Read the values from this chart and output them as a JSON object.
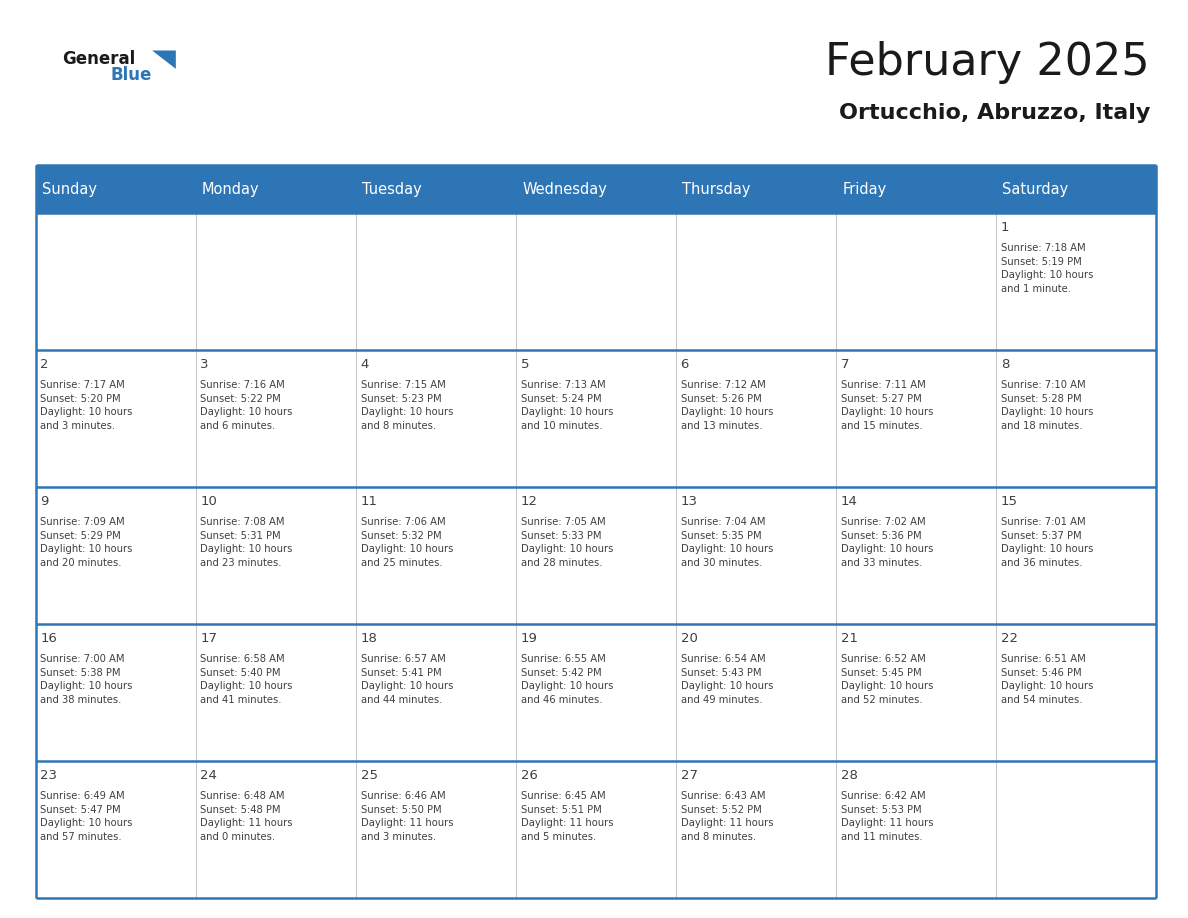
{
  "title": "February 2025",
  "subtitle": "Ortucchio, Abruzzo, Italy",
  "header_color": "#2E75B6",
  "header_text_color": "#FFFFFF",
  "cell_bg_color": "#FFFFFF",
  "border_color": "#2E75B6",
  "cell_border_color": "#AAAAAA",
  "text_color": "#404040",
  "day_headers": [
    "Sunday",
    "Monday",
    "Tuesday",
    "Wednesday",
    "Thursday",
    "Friday",
    "Saturday"
  ],
  "weeks": [
    [
      {
        "day": "",
        "info": ""
      },
      {
        "day": "",
        "info": ""
      },
      {
        "day": "",
        "info": ""
      },
      {
        "day": "",
        "info": ""
      },
      {
        "day": "",
        "info": ""
      },
      {
        "day": "",
        "info": ""
      },
      {
        "day": "1",
        "info": "Sunrise: 7:18 AM\nSunset: 5:19 PM\nDaylight: 10 hours\nand 1 minute."
      }
    ],
    [
      {
        "day": "2",
        "info": "Sunrise: 7:17 AM\nSunset: 5:20 PM\nDaylight: 10 hours\nand 3 minutes."
      },
      {
        "day": "3",
        "info": "Sunrise: 7:16 AM\nSunset: 5:22 PM\nDaylight: 10 hours\nand 6 minutes."
      },
      {
        "day": "4",
        "info": "Sunrise: 7:15 AM\nSunset: 5:23 PM\nDaylight: 10 hours\nand 8 minutes."
      },
      {
        "day": "5",
        "info": "Sunrise: 7:13 AM\nSunset: 5:24 PM\nDaylight: 10 hours\nand 10 minutes."
      },
      {
        "day": "6",
        "info": "Sunrise: 7:12 AM\nSunset: 5:26 PM\nDaylight: 10 hours\nand 13 minutes."
      },
      {
        "day": "7",
        "info": "Sunrise: 7:11 AM\nSunset: 5:27 PM\nDaylight: 10 hours\nand 15 minutes."
      },
      {
        "day": "8",
        "info": "Sunrise: 7:10 AM\nSunset: 5:28 PM\nDaylight: 10 hours\nand 18 minutes."
      }
    ],
    [
      {
        "day": "9",
        "info": "Sunrise: 7:09 AM\nSunset: 5:29 PM\nDaylight: 10 hours\nand 20 minutes."
      },
      {
        "day": "10",
        "info": "Sunrise: 7:08 AM\nSunset: 5:31 PM\nDaylight: 10 hours\nand 23 minutes."
      },
      {
        "day": "11",
        "info": "Sunrise: 7:06 AM\nSunset: 5:32 PM\nDaylight: 10 hours\nand 25 minutes."
      },
      {
        "day": "12",
        "info": "Sunrise: 7:05 AM\nSunset: 5:33 PM\nDaylight: 10 hours\nand 28 minutes."
      },
      {
        "day": "13",
        "info": "Sunrise: 7:04 AM\nSunset: 5:35 PM\nDaylight: 10 hours\nand 30 minutes."
      },
      {
        "day": "14",
        "info": "Sunrise: 7:02 AM\nSunset: 5:36 PM\nDaylight: 10 hours\nand 33 minutes."
      },
      {
        "day": "15",
        "info": "Sunrise: 7:01 AM\nSunset: 5:37 PM\nDaylight: 10 hours\nand 36 minutes."
      }
    ],
    [
      {
        "day": "16",
        "info": "Sunrise: 7:00 AM\nSunset: 5:38 PM\nDaylight: 10 hours\nand 38 minutes."
      },
      {
        "day": "17",
        "info": "Sunrise: 6:58 AM\nSunset: 5:40 PM\nDaylight: 10 hours\nand 41 minutes."
      },
      {
        "day": "18",
        "info": "Sunrise: 6:57 AM\nSunset: 5:41 PM\nDaylight: 10 hours\nand 44 minutes."
      },
      {
        "day": "19",
        "info": "Sunrise: 6:55 AM\nSunset: 5:42 PM\nDaylight: 10 hours\nand 46 minutes."
      },
      {
        "day": "20",
        "info": "Sunrise: 6:54 AM\nSunset: 5:43 PM\nDaylight: 10 hours\nand 49 minutes."
      },
      {
        "day": "21",
        "info": "Sunrise: 6:52 AM\nSunset: 5:45 PM\nDaylight: 10 hours\nand 52 minutes."
      },
      {
        "day": "22",
        "info": "Sunrise: 6:51 AM\nSunset: 5:46 PM\nDaylight: 10 hours\nand 54 minutes."
      }
    ],
    [
      {
        "day": "23",
        "info": "Sunrise: 6:49 AM\nSunset: 5:47 PM\nDaylight: 10 hours\nand 57 minutes."
      },
      {
        "day": "24",
        "info": "Sunrise: 6:48 AM\nSunset: 5:48 PM\nDaylight: 11 hours\nand 0 minutes."
      },
      {
        "day": "25",
        "info": "Sunrise: 6:46 AM\nSunset: 5:50 PM\nDaylight: 11 hours\nand 3 minutes."
      },
      {
        "day": "26",
        "info": "Sunrise: 6:45 AM\nSunset: 5:51 PM\nDaylight: 11 hours\nand 5 minutes."
      },
      {
        "day": "27",
        "info": "Sunrise: 6:43 AM\nSunset: 5:52 PM\nDaylight: 11 hours\nand 8 minutes."
      },
      {
        "day": "28",
        "info": "Sunrise: 6:42 AM\nSunset: 5:53 PM\nDaylight: 11 hours\nand 11 minutes."
      },
      {
        "day": "",
        "info": ""
      }
    ]
  ],
  "title_fontsize": 32,
  "subtitle_fontsize": 16,
  "header_fontsize": 10.5,
  "day_num_fontsize": 9.5,
  "info_fontsize": 7.2,
  "logo_general_fontsize": 12,
  "logo_blue_fontsize": 12
}
